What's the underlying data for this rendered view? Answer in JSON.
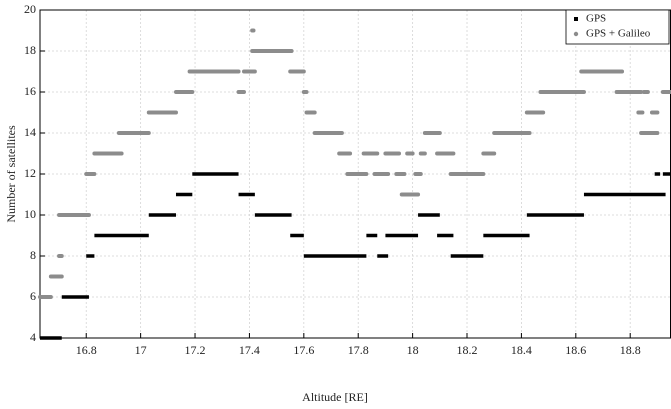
{
  "chart_data": {
    "type": "segments",
    "x_label": "Altitude [RE]",
    "y_label": "Number of satellites",
    "xlim": [
      16.63,
      18.95
    ],
    "ylim": [
      4,
      20
    ],
    "xticks": [
      16.8,
      17,
      17.2,
      17.4,
      17.6,
      17.8,
      18,
      18.2,
      18.4,
      18.6,
      18.8
    ],
    "yticks": [
      4,
      6,
      8,
      10,
      12,
      14,
      16,
      18,
      20
    ],
    "grid": true,
    "legend": "upper right",
    "series": [
      {
        "name": "GPS",
        "color": "#000000",
        "marker": "square",
        "x_start": [
          16.63,
          16.71,
          16.8,
          16.83,
          17.03,
          17.13,
          17.19,
          17.36,
          17.42,
          17.55,
          17.6,
          17.83,
          17.87,
          17.9,
          18.02,
          18.09,
          18.14,
          18.26,
          18.42,
          18.63,
          18.89,
          18.92
        ],
        "x_end": [
          16.71,
          16.81,
          16.83,
          17.03,
          17.13,
          17.19,
          17.36,
          17.42,
          17.555,
          17.6,
          17.83,
          17.87,
          17.91,
          18.02,
          18.1,
          18.15,
          18.26,
          18.43,
          18.63,
          18.93,
          18.91,
          18.95
        ],
        "values": [
          4,
          6,
          8,
          9,
          10,
          11,
          12,
          11,
          10,
          9,
          8,
          9,
          8,
          9,
          10,
          9,
          8,
          9,
          10,
          11,
          12,
          12
        ]
      },
      {
        "name": "GPS + Galileo",
        "color": "#8c8c8c",
        "marker": "circle",
        "x_start": [
          16.63,
          16.67,
          16.7,
          16.7,
          16.8,
          16.83,
          16.92,
          17.03,
          17.13,
          17.18,
          17.36,
          17.38,
          17.41,
          17.41,
          17.55,
          17.6,
          17.61,
          17.64,
          17.73,
          17.76,
          17.82,
          17.86,
          17.9,
          17.94,
          17.96,
          17.98,
          18.01,
          18.03,
          18.045,
          18.09,
          18.14,
          18.26,
          18.3,
          18.42,
          18.47,
          18.62,
          18.75,
          18.83,
          18.85,
          18.84,
          18.88,
          18.92
        ],
        "x_end": [
          16.67,
          16.71,
          16.71,
          16.81,
          16.83,
          16.93,
          17.03,
          17.13,
          17.19,
          17.36,
          17.38,
          17.42,
          17.415,
          17.555,
          17.6,
          17.61,
          17.64,
          17.74,
          17.77,
          17.83,
          17.87,
          17.91,
          17.95,
          17.97,
          18.02,
          18.0,
          18.03,
          18.045,
          18.1,
          18.15,
          18.26,
          18.3,
          18.43,
          18.48,
          18.63,
          18.77,
          18.84,
          18.845,
          18.865,
          18.9,
          18.9,
          18.95
        ],
        "values": [
          6,
          7,
          8,
          10,
          12,
          13,
          14,
          15,
          16,
          17,
          16,
          17,
          19,
          18,
          17,
          16,
          15,
          14,
          13,
          12,
          13,
          12,
          13,
          12,
          11,
          13,
          12,
          13,
          14,
          13,
          12,
          13,
          14,
          15,
          16,
          17,
          16,
          15,
          16,
          14,
          15,
          16
        ]
      }
    ]
  }
}
